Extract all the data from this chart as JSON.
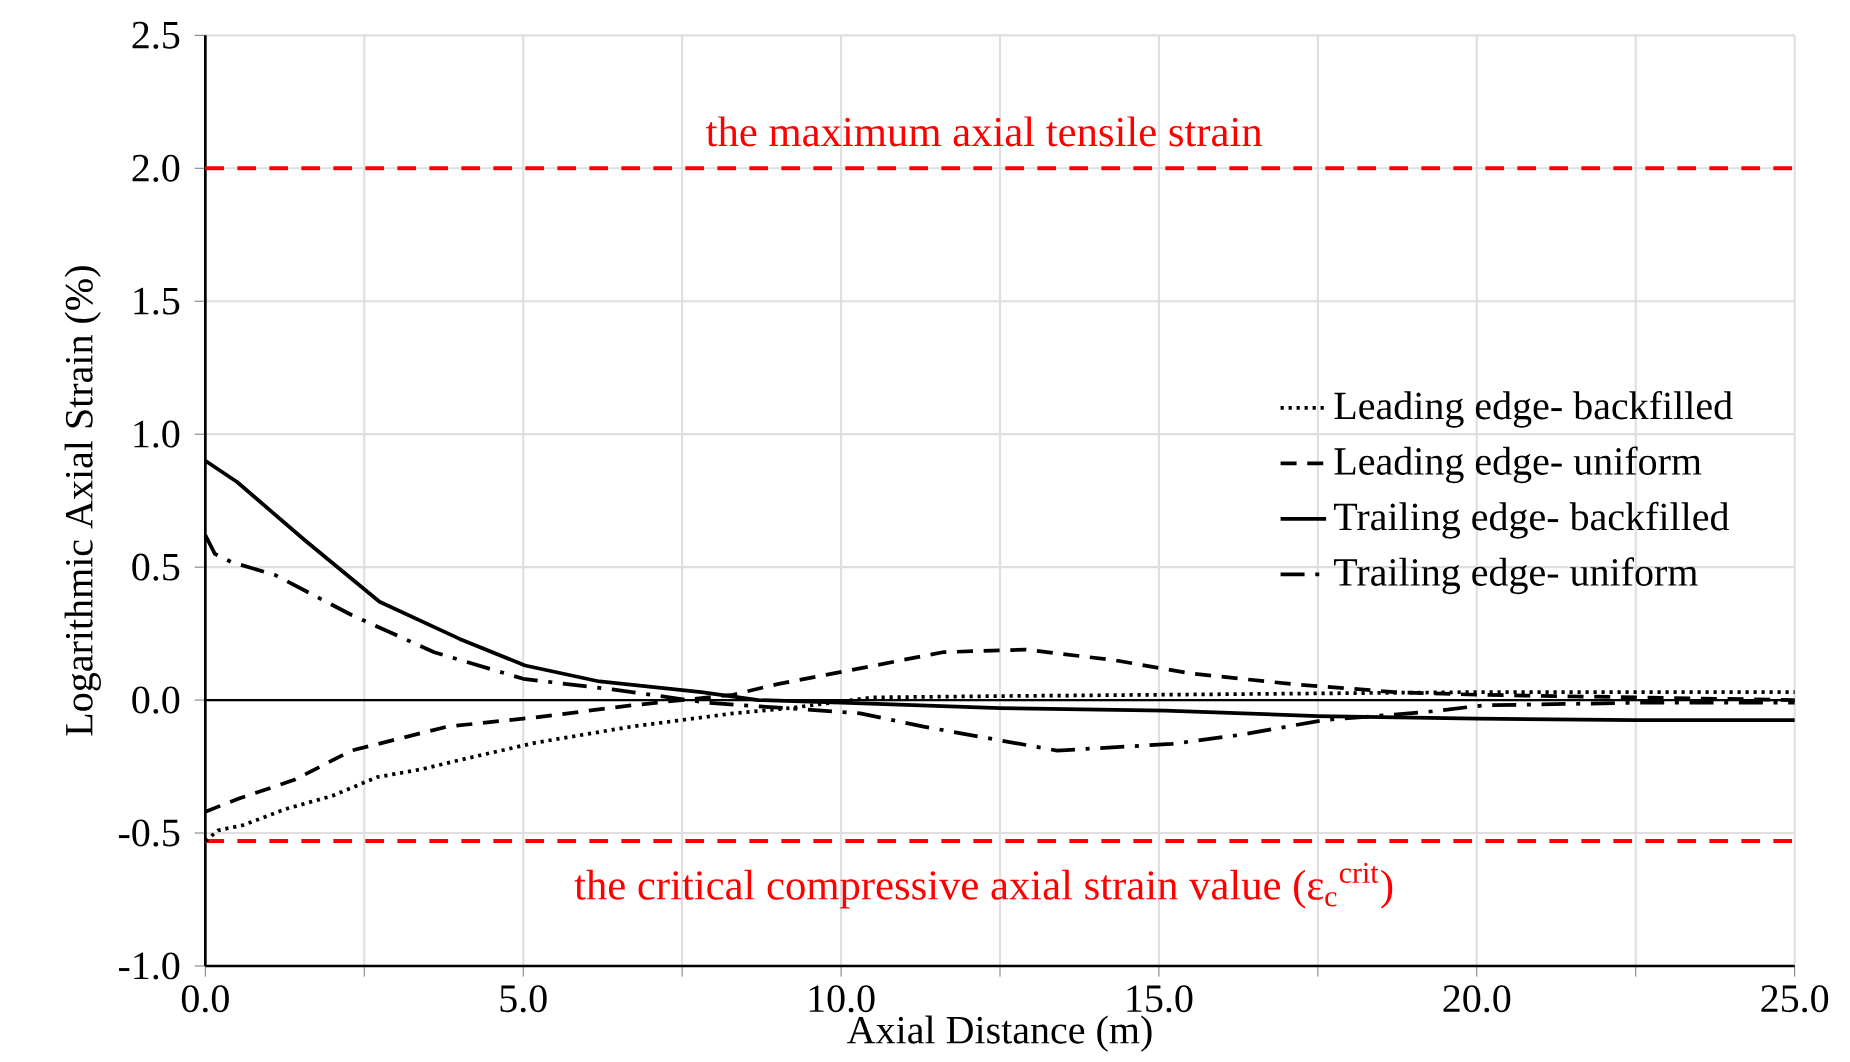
{
  "chart_data": {
    "type": "line",
    "xlabel": "Axial Distance (m)",
    "ylabel": "Logarithmic Axial Strain (%)",
    "xlim": [
      0,
      25
    ],
    "ylim": [
      -1,
      2.5
    ],
    "xticks": [
      {
        "value": 0,
        "label": "0.0"
      },
      {
        "value": 2.5,
        "label": null
      },
      {
        "value": 5,
        "label": "5.0"
      },
      {
        "value": 7.5,
        "label": null
      },
      {
        "value": 10,
        "label": "10.0"
      },
      {
        "value": 12.5,
        "label": null
      },
      {
        "value": 15,
        "label": "15.0"
      },
      {
        "value": 17.5,
        "label": null
      },
      {
        "value": 20,
        "label": "20.0"
      },
      {
        "value": 22.5,
        "label": null
      },
      {
        "value": 25,
        "label": "25.0"
      }
    ],
    "yticks": [
      {
        "value": -1,
        "label": "-1.0"
      },
      {
        "value": -0.5,
        "label": "-0.5"
      },
      {
        "value": 0,
        "label": "0.0"
      },
      {
        "value": 0.5,
        "label": "0.5"
      },
      {
        "value": 1,
        "label": "1.0"
      },
      {
        "value": 1.5,
        "label": "1.5"
      },
      {
        "value": 2,
        "label": "2.0"
      },
      {
        "value": 2.5,
        "label": "2.5"
      }
    ],
    "grid": true,
    "legend": "top right",
    "marker": "none",
    "series": [
      {
        "name": "Leading edge- backfilled",
        "color": "#000000",
        "line_style": "dotted",
        "x": [
          0,
          0.2,
          0.6,
          1.26,
          2,
          2.7,
          3.4,
          4.1,
          5.2,
          6.7,
          8.3,
          9.2,
          10.5,
          12.5,
          15,
          17.5,
          20,
          22.5,
          25
        ],
        "values": [
          -0.53,
          -0.49,
          -0.47,
          -0.41,
          -0.36,
          -0.29,
          -0.26,
          -0.22,
          -0.16,
          -0.1,
          -0.05,
          -0.03,
          0.01,
          0.015,
          0.02,
          0.025,
          0.03,
          0.03,
          0.03
        ]
      },
      {
        "name": "Leading edge- uniform",
        "color": "#000000",
        "line_style": "dashed",
        "x": [
          0,
          0.53,
          1.4,
          2.3,
          3.8,
          5.2,
          6.7,
          8.3,
          9,
          10.1,
          11.6,
          12.9,
          14.3,
          15.5,
          17.1,
          18.7,
          20,
          22.5,
          25
        ],
        "values": [
          -0.42,
          -0.37,
          -0.3,
          -0.19,
          -0.1,
          -0.065,
          -0.02,
          0.02,
          0.06,
          0.11,
          0.18,
          0.19,
          0.15,
          0.1,
          0.06,
          0.03,
          0.02,
          0.01,
          0.0
        ]
      },
      {
        "name": "Trailing edge- backfilled",
        "color": "#000000",
        "line_style": "solid",
        "x": [
          0,
          0.5,
          1.57,
          2.74,
          4,
          5.03,
          6.2,
          7.8,
          8.7,
          10,
          12.5,
          15.1,
          17.5,
          20,
          22.5,
          25
        ],
        "values": [
          0.9,
          0.82,
          0.6,
          0.37,
          0.23,
          0.13,
          0.07,
          0.03,
          0.0,
          -0.01,
          -0.03,
          -0.04,
          -0.06,
          -0.07,
          -0.075,
          -0.075
        ]
      },
      {
        "name": "Trailing edge- uniform",
        "color": "#000000",
        "line_style": "dashdotted",
        "x": [
          0,
          0.15,
          0.4,
          1.1,
          2.3,
          3.6,
          5,
          6.4,
          7.9,
          10.3,
          11.3,
          13.4,
          15.2,
          16.3,
          17.6,
          19.2,
          20.1,
          22.5,
          25
        ],
        "values": [
          0.62,
          0.55,
          0.52,
          0.47,
          0.32,
          0.18,
          0.08,
          0.04,
          -0.01,
          -0.05,
          -0.1,
          -0.19,
          -0.165,
          -0.13,
          -0.075,
          -0.045,
          -0.02,
          -0.01,
          -0.01
        ]
      }
    ],
    "ref_lines": [
      {
        "axis": "y",
        "value": 2.0,
        "label": "the maximum axial tensile strain",
        "color": "#ff0000",
        "line_style": "dashed"
      },
      {
        "axis": "y",
        "value": -0.53,
        "label": "the critical compressive axial strain value (ε$_{c}$$^{crit}$)",
        "color": "#ff0000",
        "line_style": "dashed"
      }
    ]
  }
}
